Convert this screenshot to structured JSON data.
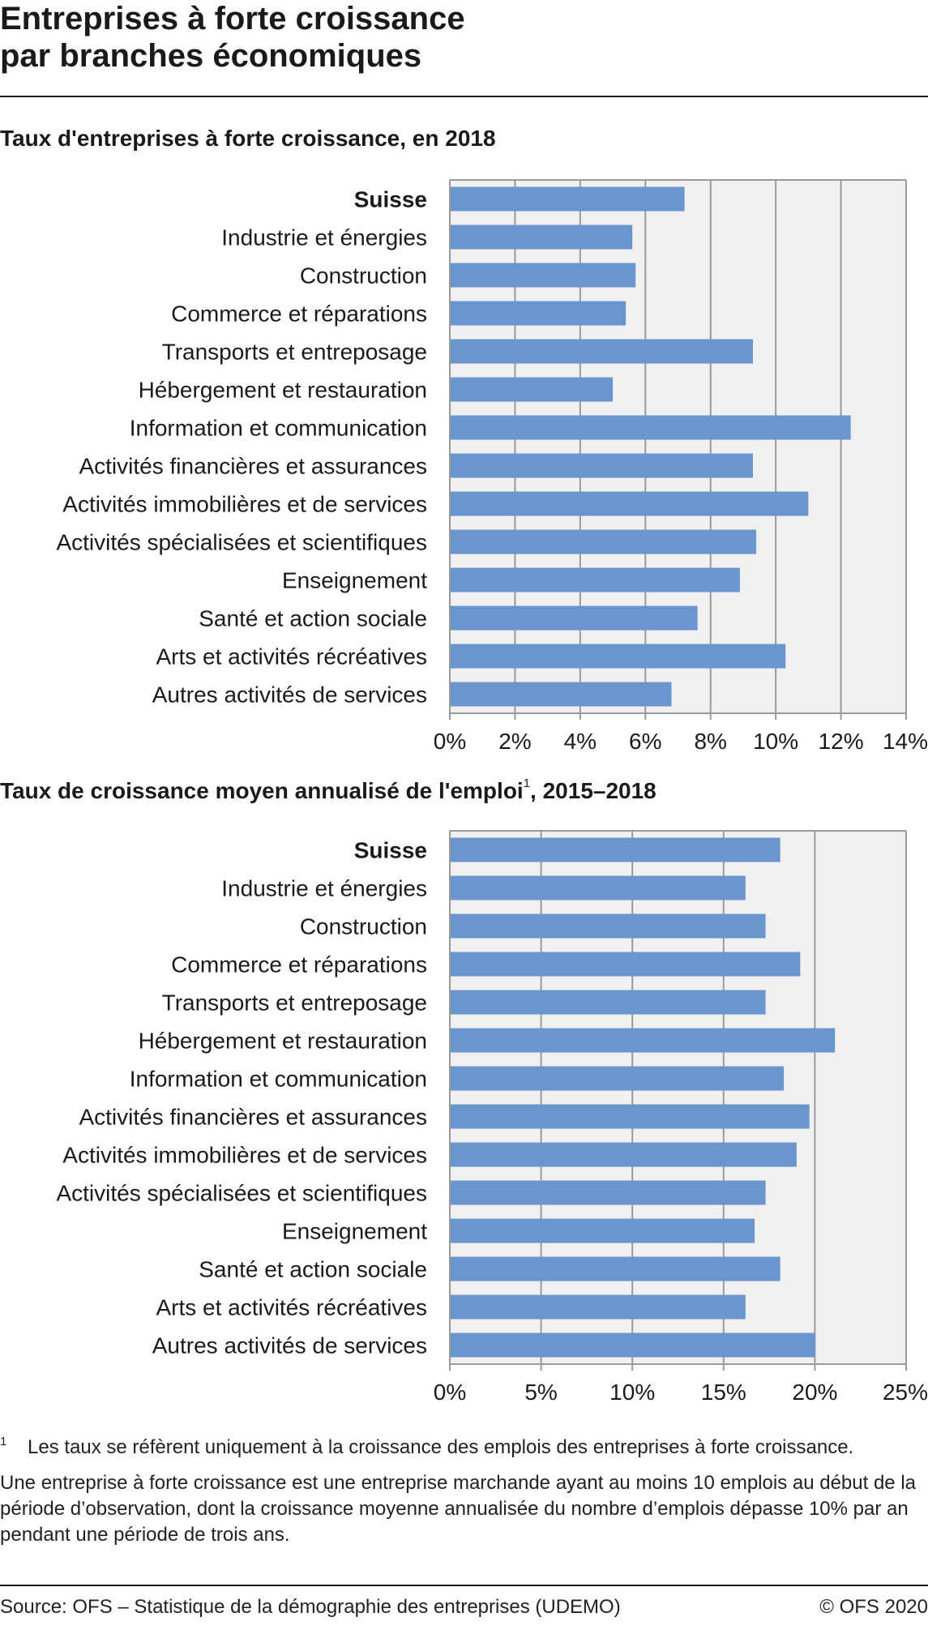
{
  "title": {
    "line1": "Entreprises à forte croissance",
    "line2": "par branches économiques"
  },
  "colors": {
    "bar": "#6a95cd",
    "plot_background": "#f0f0f0",
    "grid": "#9a9a9a"
  },
  "chart_data": [
    {
      "type": "bar",
      "orientation": "horizontal",
      "title": "Taux d'entreprises à forte croissance, en 2018",
      "categories": [
        "Suisse",
        "Industrie et énergies",
        "Construction",
        "Commerce et réparations",
        "Transports et entreposage",
        "Hébergement et restauration",
        "Information et communication",
        "Activités financières et assurances",
        "Activités immobilières et de services",
        "Activités spécialisées et scientifiques",
        "Enseignement",
        "Santé et action sociale",
        "Arts et activités récréatives",
        "Autres activités de services"
      ],
      "values": [
        7.2,
        5.6,
        5.7,
        5.4,
        9.3,
        5.0,
        12.3,
        9.3,
        11.0,
        9.4,
        8.9,
        7.6,
        10.3,
        6.8
      ],
      "unit": "%",
      "xlim": [
        0,
        14
      ],
      "xticks": [
        0,
        2,
        4,
        6,
        8,
        10,
        12,
        14
      ],
      "xtick_labels": [
        "0%",
        "2%",
        "4%",
        "6%",
        "8%",
        "10%",
        "12%",
        "14%"
      ],
      "grid": true,
      "bold_category": "Suisse"
    },
    {
      "type": "bar",
      "orientation": "horizontal",
      "title": "Taux de croissance moyen annualisé de l'emploi",
      "title_footnote": "1",
      "title_suffix": ", 2015–2018",
      "categories": [
        "Suisse",
        "Industrie et énergies",
        "Construction",
        "Commerce et réparations",
        "Transports et entreposage",
        "Hébergement et restauration",
        "Information et communication",
        "Activités financières et assurances",
        "Activités immobilières et de services",
        "Activités spécialisées et scientifiques",
        "Enseignement",
        "Santé et action sociale",
        "Arts et activités récréatives",
        "Autres activités de services"
      ],
      "values": [
        18.1,
        16.2,
        17.3,
        19.2,
        17.3,
        21.1,
        18.3,
        19.7,
        19.0,
        17.3,
        16.7,
        18.1,
        16.2,
        20.0
      ],
      "unit": "%",
      "xlim": [
        0,
        25
      ],
      "xticks": [
        0,
        5,
        10,
        15,
        20,
        25
      ],
      "xtick_labels": [
        "0%",
        "5%",
        "10%",
        "15%",
        "20%",
        "25%"
      ],
      "grid": true,
      "bold_category": "Suisse"
    }
  ],
  "footnote": {
    "mark": "1",
    "text": "Les taux se réfèrent uniquement à la croissance des emplois des entreprises à forte croissance."
  },
  "definition": "Une entreprise à forte croissance est une entreprise marchande ayant au moins 10 emplois au début de la période d’observation, dont la croissance moyenne annualisée du nombre d’emplois dépasse 10% par an pendant une période de trois ans.",
  "source": "Source: OFS – Statistique de la démographie des entreprises (UDEMO)",
  "copyright": "© OFS 2020"
}
